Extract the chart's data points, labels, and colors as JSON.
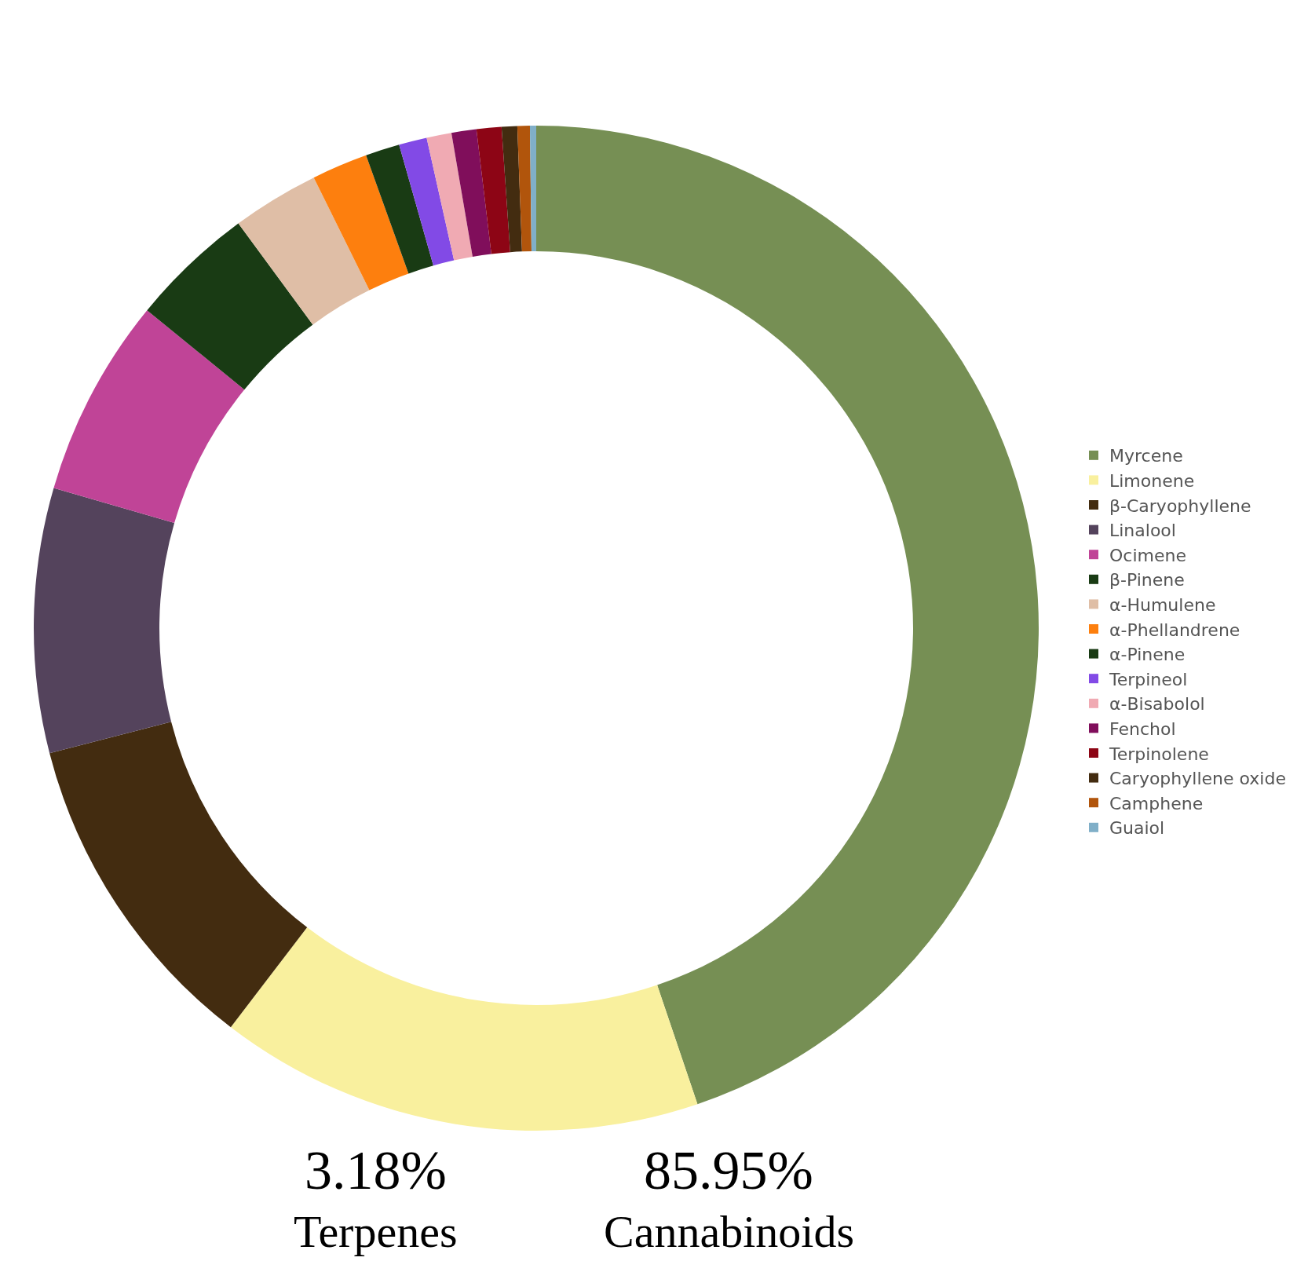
{
  "chart_data": {
    "type": "donut",
    "categories": [
      "Myrcene",
      "Limonene",
      "β-Caryophyllene",
      "Linalool",
      "Ocimene",
      "β-Pinene",
      "α-Humulene",
      "α-Phellandrene",
      "α-Pinene",
      "Terpineol",
      "α-Bisabolol",
      "Fenchol",
      "Terpinolene",
      "Caryophyllene oxide",
      "Camphene",
      "Guaiol"
    ],
    "values": [
      44.8,
      15.6,
      10.6,
      8.5,
      6.4,
      4.0,
      2.8,
      1.8,
      1.1,
      0.9,
      0.8,
      0.8,
      0.8,
      0.5,
      0.4,
      0.2
    ],
    "colors": [
      "#768f54",
      "#f9f09e",
      "#432c10",
      "#54435c",
      "#c04497",
      "#193b14",
      "#dfbea6",
      "#fd7f0e",
      "#193b14",
      "#824ae6",
      "#f0aab3",
      "#800e5b",
      "#8d0515",
      "#432c10",
      "#b1550c",
      "#80afc8"
    ],
    "legend": "right",
    "annotations": [
      "3.18%",
      "Terpenes",
      "85.95%",
      "Cannabinoids"
    ]
  }
}
